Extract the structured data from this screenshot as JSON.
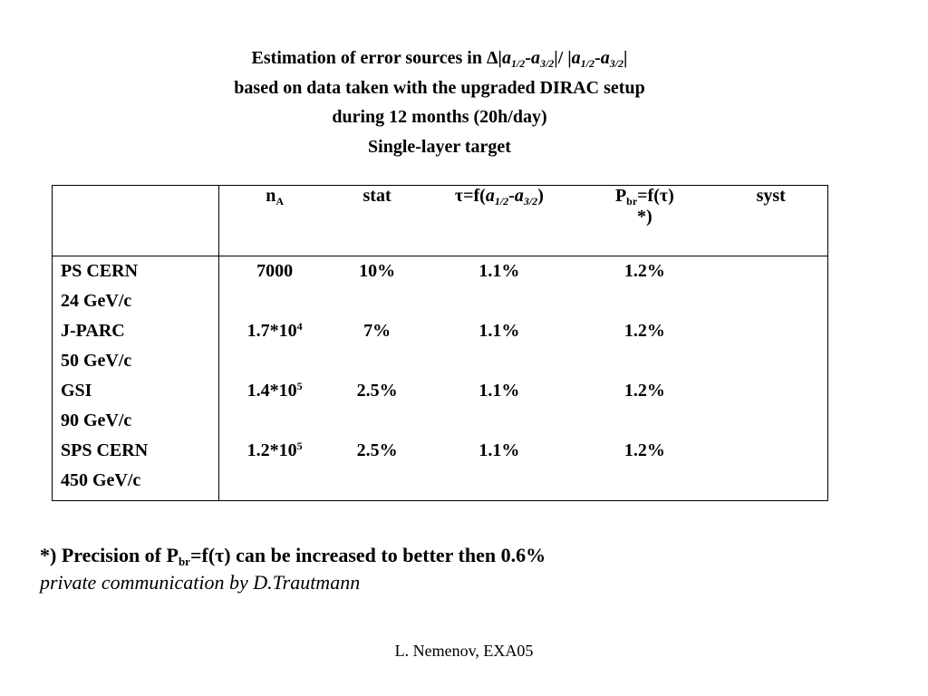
{
  "title": {
    "line1_prefix": "Estimation of error sources in ",
    "delta": "Δ",
    "line2": "based on data taken with the upgraded DIRAC setup",
    "line3": "during 12 months (20h/day)",
    "line4": "Single-layer target"
  },
  "symbols": {
    "bar": "|",
    "slash": "/",
    "a": "a",
    "sub_half": "1/2",
    "sub_threehalf": "3/2",
    "minus": "-",
    "tau": "τ"
  },
  "table": {
    "headers": {
      "nA_base": "n",
      "nA_sub": "A",
      "stat": "stat",
      "tau_prefix": "τ=f(",
      "tau_suffix": ")",
      "pbr_base": "P",
      "pbr_sub": "br",
      "pbr_rest": "=f(τ)",
      "pbr_note": "*)",
      "syst": "syst"
    },
    "rows": [
      {
        "site": "PS CERN",
        "energy": "24 GeV/c",
        "nA_base": "7000",
        "nA_exp": "",
        "stat": "10%",
        "tau": "1.1%",
        "pbr": "1.2%",
        "syst": ""
      },
      {
        "site": "J-PARC",
        "energy": "50 GeV/c",
        "nA_base": "1.7*10",
        "nA_exp": "4",
        "stat": "7%",
        "tau": "1.1%",
        "pbr": "1.2%",
        "syst": ""
      },
      {
        "site": "GSI",
        "energy": "90 GeV/c",
        "nA_base": "1.4*10",
        "nA_exp": "5",
        "stat": "2.5%",
        "tau": "1.1%",
        "pbr": "1.2%",
        "syst": ""
      },
      {
        "site": "SPS CERN",
        "energy": "450 GeV/c",
        "nA_base": "1.2*10",
        "nA_exp": "5",
        "stat": "2.5%",
        "tau": "1.1%",
        "pbr": "1.2%",
        "syst": ""
      }
    ]
  },
  "footnote": {
    "prefix": "*) Precision of P",
    "sub": "br",
    "suffix": "=f(τ) can be increased to better then 0.6%"
  },
  "communication": "private communication by D.Trautmann",
  "author": "L. Nemenov, EXA05"
}
